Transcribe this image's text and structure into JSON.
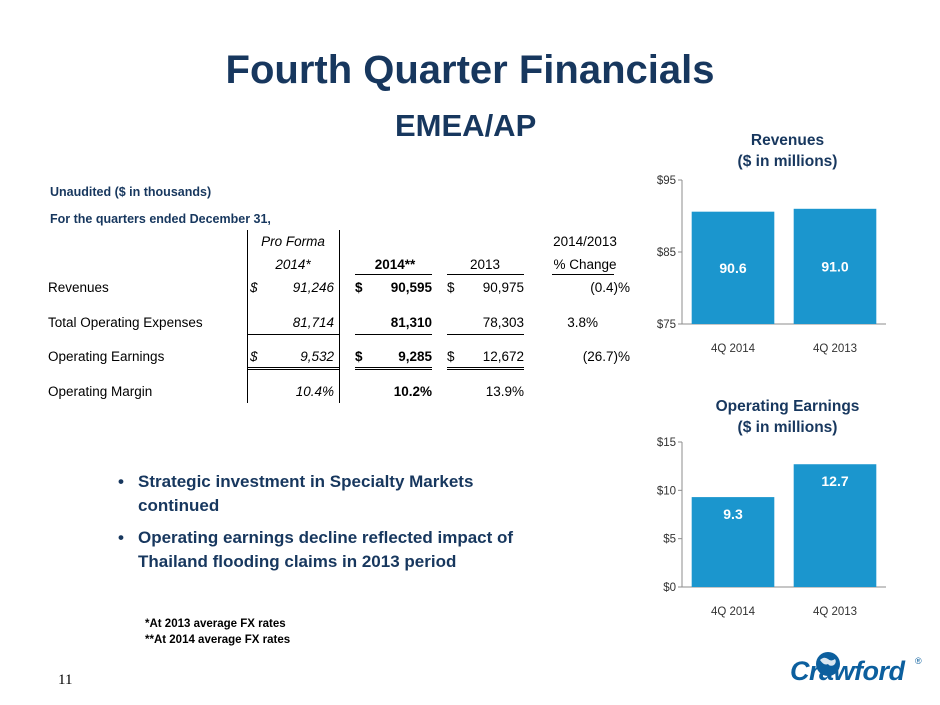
{
  "title": "Fourth Quarter Financials",
  "subtitle": "EMEA/AP",
  "notes": {
    "unaudited": "Unaudited ($ in thousands)",
    "quarters": "For the quarters ended December 31,"
  },
  "table": {
    "header_top": {
      "pro_forma": "Pro Forma",
      "change": "2014/2013"
    },
    "header_bottom": {
      "pro_forma": "2014*",
      "y2014": "2014**",
      "y2013": "2013",
      "change": "% Change"
    },
    "rows": [
      {
        "label": "Revenues",
        "pf_dollar": "$",
        "pf": "91,246",
        "a_dollar": "$",
        "a": "90,595",
        "b_dollar": "$",
        "b": "90,975",
        "change": "(0.4)%"
      },
      {
        "label": "Total Operating Expenses",
        "pf_dollar": "",
        "pf": "81,714",
        "a_dollar": "",
        "a": "81,310",
        "b_dollar": "",
        "b": "78,303",
        "change": "3.8%"
      },
      {
        "label": "Operating Earnings",
        "pf_dollar": "$",
        "pf": "9,532",
        "a_dollar": "$",
        "a": "9,285",
        "b_dollar": "$",
        "b": "12,672",
        "change": "(26.7)%"
      },
      {
        "label": "Operating Margin",
        "pf_dollar": "",
        "pf": "10.4%",
        "a_dollar": "",
        "a": "10.2%",
        "b_dollar": "",
        "b": "13.9%",
        "change": ""
      }
    ]
  },
  "bullets": [
    "Strategic investment in Specialty Markets continued",
    "Operating earnings decline reflected impact of Thailand flooding claims in 2013 period"
  ],
  "footnotes": [
    "*At 2013 average FX rates",
    "**At 2014 average FX rates"
  ],
  "page_number": "11",
  "logo": {
    "text": "Crawford",
    "registered": "®"
  },
  "colors": {
    "title": "#17375e",
    "bar": "#1b96ce",
    "logo": "#0c5f9e"
  },
  "chart_data": [
    {
      "type": "bar",
      "title": "Revenues",
      "subtitle": "($ in millions)",
      "categories": [
        "4Q 2014",
        "4Q 2013"
      ],
      "values": [
        90.6,
        91.0
      ],
      "data_labels": [
        "90.6",
        "91.0"
      ],
      "ylim": [
        75,
        95
      ],
      "yticks": [
        75,
        85,
        95
      ],
      "ytick_labels": [
        "$75",
        "$85",
        "$95"
      ],
      "grid": false
    },
    {
      "type": "bar",
      "title": "Operating Earnings",
      "subtitle": "($ in millions)",
      "categories": [
        "4Q 2014",
        "4Q 2013"
      ],
      "values": [
        9.3,
        12.7
      ],
      "data_labels": [
        "9.3",
        "12.7"
      ],
      "ylim": [
        0,
        15
      ],
      "yticks": [
        0,
        5,
        10,
        15
      ],
      "ytick_labels": [
        "$0",
        "$5",
        "$10",
        "$15"
      ],
      "grid": false
    }
  ]
}
